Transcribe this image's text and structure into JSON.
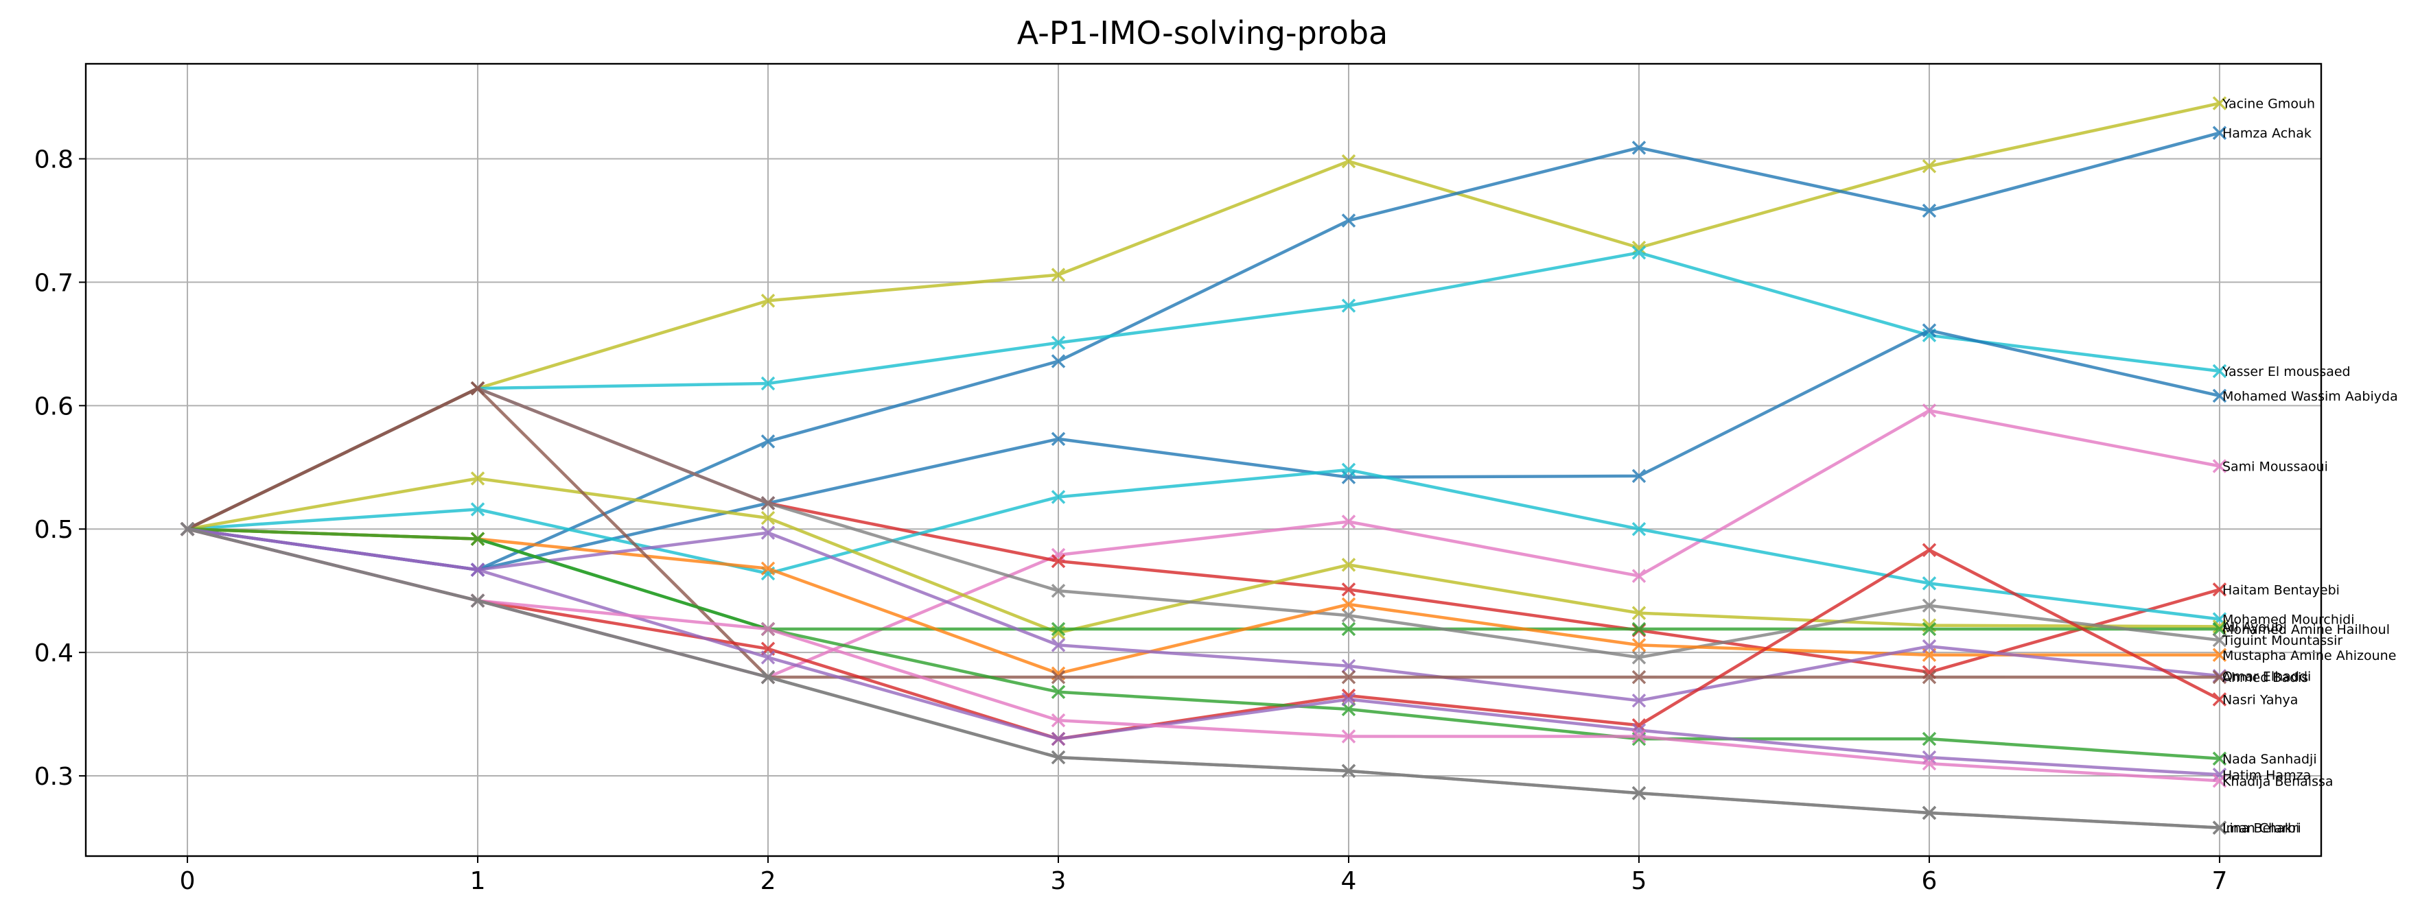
{
  "chart_data": {
    "type": "line",
    "title": "A-P1-IMO-solving-proba",
    "xlabel": "",
    "ylabel": "",
    "x": [
      0,
      1,
      2,
      3,
      4,
      5,
      6,
      7
    ],
    "xlim": [
      -0.35,
      7.35
    ],
    "ylim": [
      0.235,
      0.877
    ],
    "xticks": [
      "0",
      "1",
      "2",
      "3",
      "4",
      "5",
      "6",
      "7"
    ],
    "yticks": [
      "0.3",
      "0.4",
      "0.5",
      "0.6",
      "0.7",
      "0.8"
    ],
    "ytick_values": [
      0.3,
      0.4,
      0.5,
      0.6,
      0.7,
      0.8
    ],
    "grid": true,
    "legend": "none",
    "marker": "x",
    "series": [
      {
        "name": "Yacine Gmouh",
        "color": "#bcbd22",
        "values": [
          0.5,
          0.614,
          0.685,
          0.706,
          0.798,
          0.728,
          0.794,
          0.845
        ]
      },
      {
        "name": "Hamza Achak",
        "color": "#1f77b4",
        "values": [
          0.5,
          0.467,
          0.571,
          0.636,
          0.75,
          0.809,
          0.758,
          0.821
        ]
      },
      {
        "name": "Yasser El moussaed",
        "color": "#17becf",
        "values": [
          0.5,
          0.614,
          0.618,
          0.651,
          0.681,
          0.724,
          0.657,
          0.628
        ]
      },
      {
        "name": "Mohamed Wassim Aabiyda",
        "color": "#1f77b4",
        "values": [
          0.5,
          0.467,
          0.521,
          0.573,
          0.542,
          0.543,
          0.661,
          0.608
        ]
      },
      {
        "name": "Sami Moussaoui",
        "color": "#e377c2",
        "values": [
          0.5,
          0.442,
          0.38,
          0.479,
          0.506,
          0.462,
          0.596,
          0.551
        ]
      },
      {
        "name": "Haitam Bentayebi",
        "color": "#d62728",
        "values": [
          0.5,
          0.614,
          0.521,
          0.474,
          0.451,
          0.418,
          0.384,
          0.451
        ]
      },
      {
        "name": "Mohamed Mourchidi",
        "color": "#17becf",
        "values": [
          0.5,
          0.516,
          0.464,
          0.526,
          0.548,
          0.5,
          0.456,
          0.427
        ]
      },
      {
        "name": "Ali Ayoub",
        "color": "#bcbd22",
        "values": [
          0.5,
          0.541,
          0.509,
          0.416,
          0.471,
          0.432,
          0.422,
          0.421
        ]
      },
      {
        "name": "Mohamed Amine Hailhoul",
        "color": "#2ca02c",
        "values": [
          0.5,
          0.492,
          0.419,
          0.419,
          0.419,
          0.419,
          0.419,
          0.419
        ]
      },
      {
        "name": "Tiguint Mountassir",
        "color": "#7f7f7f",
        "values": [
          0.5,
          0.614,
          0.521,
          0.45,
          0.43,
          0.396,
          0.438,
          0.41
        ]
      },
      {
        "name": "Mustapha Amine Ahizoune",
        "color": "#ff7f0e",
        "values": [
          0.5,
          0.492,
          0.468,
          0.383,
          0.439,
          0.406,
          0.398,
          0.398
        ]
      },
      {
        "name": "Omar Elhaddi",
        "color": "#9467bd",
        "values": [
          0.5,
          0.467,
          0.497,
          0.406,
          0.389,
          0.361,
          0.405,
          0.381
        ]
      },
      {
        "name": "Ahmed Badis",
        "color": "#8c564b",
        "values": [
          0.5,
          0.614,
          0.38,
          0.38,
          0.38,
          0.38,
          0.38,
          0.38
        ]
      },
      {
        "name": "Nasri Yahya",
        "color": "#d62728",
        "values": [
          0.5,
          0.442,
          0.403,
          0.33,
          0.365,
          0.341,
          0.483,
          0.362
        ]
      },
      {
        "name": "Nada Sanhadji",
        "color": "#2ca02c",
        "values": [
          0.5,
          0.492,
          0.419,
          0.368,
          0.354,
          0.33,
          0.33,
          0.314
        ]
      },
      {
        "name": "Hatim Hamza",
        "color": "#9467bd",
        "values": [
          0.5,
          0.467,
          0.396,
          0.33,
          0.362,
          0.337,
          0.315,
          0.301
        ]
      },
      {
        "name": "Khadija Benaissa",
        "color": "#e377c2",
        "values": [
          0.5,
          0.442,
          0.419,
          0.345,
          0.332,
          0.332,
          0.31,
          0.296
        ]
      },
      {
        "name": "Iman Chakri",
        "color": "#7f7f7f",
        "values": [
          0.5,
          0.442,
          0.38,
          0.315,
          0.304,
          0.286,
          0.27,
          0.258
        ]
      },
      {
        "name": "Lina Belarbi",
        "color": "#7f7f7f",
        "values": [
          0.5,
          0.442,
          0.38,
          0.315,
          0.304,
          0.286,
          0.27,
          0.258
        ]
      }
    ]
  }
}
